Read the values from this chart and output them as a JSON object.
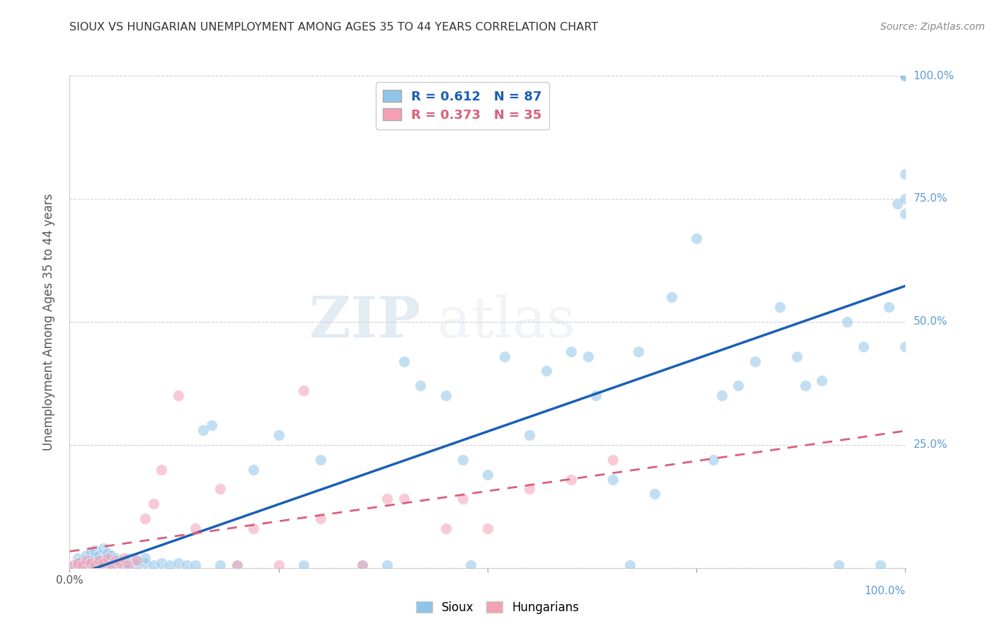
{
  "title": "SIOUX VS HUNGARIAN UNEMPLOYMENT AMONG AGES 35 TO 44 YEARS CORRELATION CHART",
  "source": "Source: ZipAtlas.com",
  "ylabel": "Unemployment Among Ages 35 to 44 years",
  "xlim": [
    0.0,
    1.0
  ],
  "ylim": [
    0.0,
    1.0
  ],
  "xticks": [
    0.0,
    0.25,
    0.5,
    0.75,
    1.0
  ],
  "yticks": [
    0.0,
    0.25,
    0.5,
    0.75,
    1.0
  ],
  "xticklabels": [
    "0.0%",
    "",
    "",
    "",
    "100.0%"
  ],
  "yticklabels": [
    "",
    "25.0%",
    "50.0%",
    "75.0%",
    "100.0%"
  ],
  "sioux_color": "#90c4e8",
  "hungarian_color": "#f4a0b5",
  "sioux_line_color": "#1a5fb4",
  "hungarian_line_color": "#d9607a",
  "sioux_R": 0.612,
  "sioux_N": 87,
  "hungarian_R": 0.373,
  "hungarian_N": 35,
  "watermark_zip": "ZIP",
  "watermark_atlas": "atlas",
  "grid_color": "#cccccc",
  "background_color": "#ffffff",
  "sioux_x": [
    0.005,
    0.01,
    0.01,
    0.015,
    0.015,
    0.02,
    0.02,
    0.025,
    0.025,
    0.025,
    0.03,
    0.03,
    0.03,
    0.035,
    0.035,
    0.04,
    0.04,
    0.04,
    0.045,
    0.045,
    0.05,
    0.05,
    0.055,
    0.055,
    0.06,
    0.065,
    0.07,
    0.07,
    0.08,
    0.08,
    0.09,
    0.09,
    0.1,
    0.11,
    0.12,
    0.13,
    0.14,
    0.15,
    0.16,
    0.17,
    0.18,
    0.2,
    0.22,
    0.25,
    0.28,
    0.3,
    0.35,
    0.38,
    0.4,
    0.42,
    0.45,
    0.47,
    0.48,
    0.5,
    0.52,
    0.55,
    0.57,
    0.6,
    0.62,
    0.63,
    0.65,
    0.67,
    0.68,
    0.7,
    0.72,
    0.75,
    0.77,
    0.78,
    0.8,
    0.82,
    0.85,
    0.87,
    0.88,
    0.9,
    0.92,
    0.93,
    0.95,
    0.97,
    0.98,
    0.99,
    1.0,
    1.0,
    1.0,
    1.0,
    1.0,
    1.0,
    1.0
  ],
  "sioux_y": [
    0.005,
    0.01,
    0.02,
    0.005,
    0.015,
    0.01,
    0.025,
    0.005,
    0.015,
    0.03,
    0.01,
    0.02,
    0.035,
    0.01,
    0.025,
    0.005,
    0.02,
    0.04,
    0.01,
    0.03,
    0.005,
    0.025,
    0.01,
    0.02,
    0.015,
    0.005,
    0.01,
    0.02,
    0.005,
    0.015,
    0.01,
    0.02,
    0.005,
    0.01,
    0.005,
    0.01,
    0.005,
    0.005,
    0.28,
    0.29,
    0.005,
    0.005,
    0.2,
    0.27,
    0.005,
    0.22,
    0.005,
    0.005,
    0.42,
    0.37,
    0.35,
    0.22,
    0.005,
    0.19,
    0.43,
    0.27,
    0.4,
    0.44,
    0.43,
    0.35,
    0.18,
    0.005,
    0.44,
    0.15,
    0.55,
    0.67,
    0.22,
    0.35,
    0.37,
    0.42,
    0.53,
    0.43,
    0.37,
    0.38,
    0.005,
    0.5,
    0.45,
    0.005,
    0.53,
    0.74,
    0.8,
    1.0,
    1.0,
    0.75,
    0.72,
    0.45,
    1.0
  ],
  "hungarian_x": [
    0.005,
    0.01,
    0.015,
    0.02,
    0.025,
    0.03,
    0.035,
    0.04,
    0.045,
    0.05,
    0.055,
    0.06,
    0.065,
    0.07,
    0.08,
    0.09,
    0.1,
    0.11,
    0.13,
    0.15,
    0.18,
    0.2,
    0.22,
    0.25,
    0.28,
    0.3,
    0.35,
    0.38,
    0.4,
    0.45,
    0.47,
    0.5,
    0.55,
    0.6,
    0.65
  ],
  "hungarian_y": [
    0.005,
    0.01,
    0.005,
    0.015,
    0.01,
    0.005,
    0.015,
    0.01,
    0.02,
    0.005,
    0.015,
    0.01,
    0.02,
    0.005,
    0.015,
    0.1,
    0.13,
    0.2,
    0.35,
    0.08,
    0.16,
    0.005,
    0.08,
    0.005,
    0.36,
    0.1,
    0.005,
    0.14,
    0.14,
    0.08,
    0.14,
    0.08,
    0.16,
    0.18,
    0.22
  ]
}
